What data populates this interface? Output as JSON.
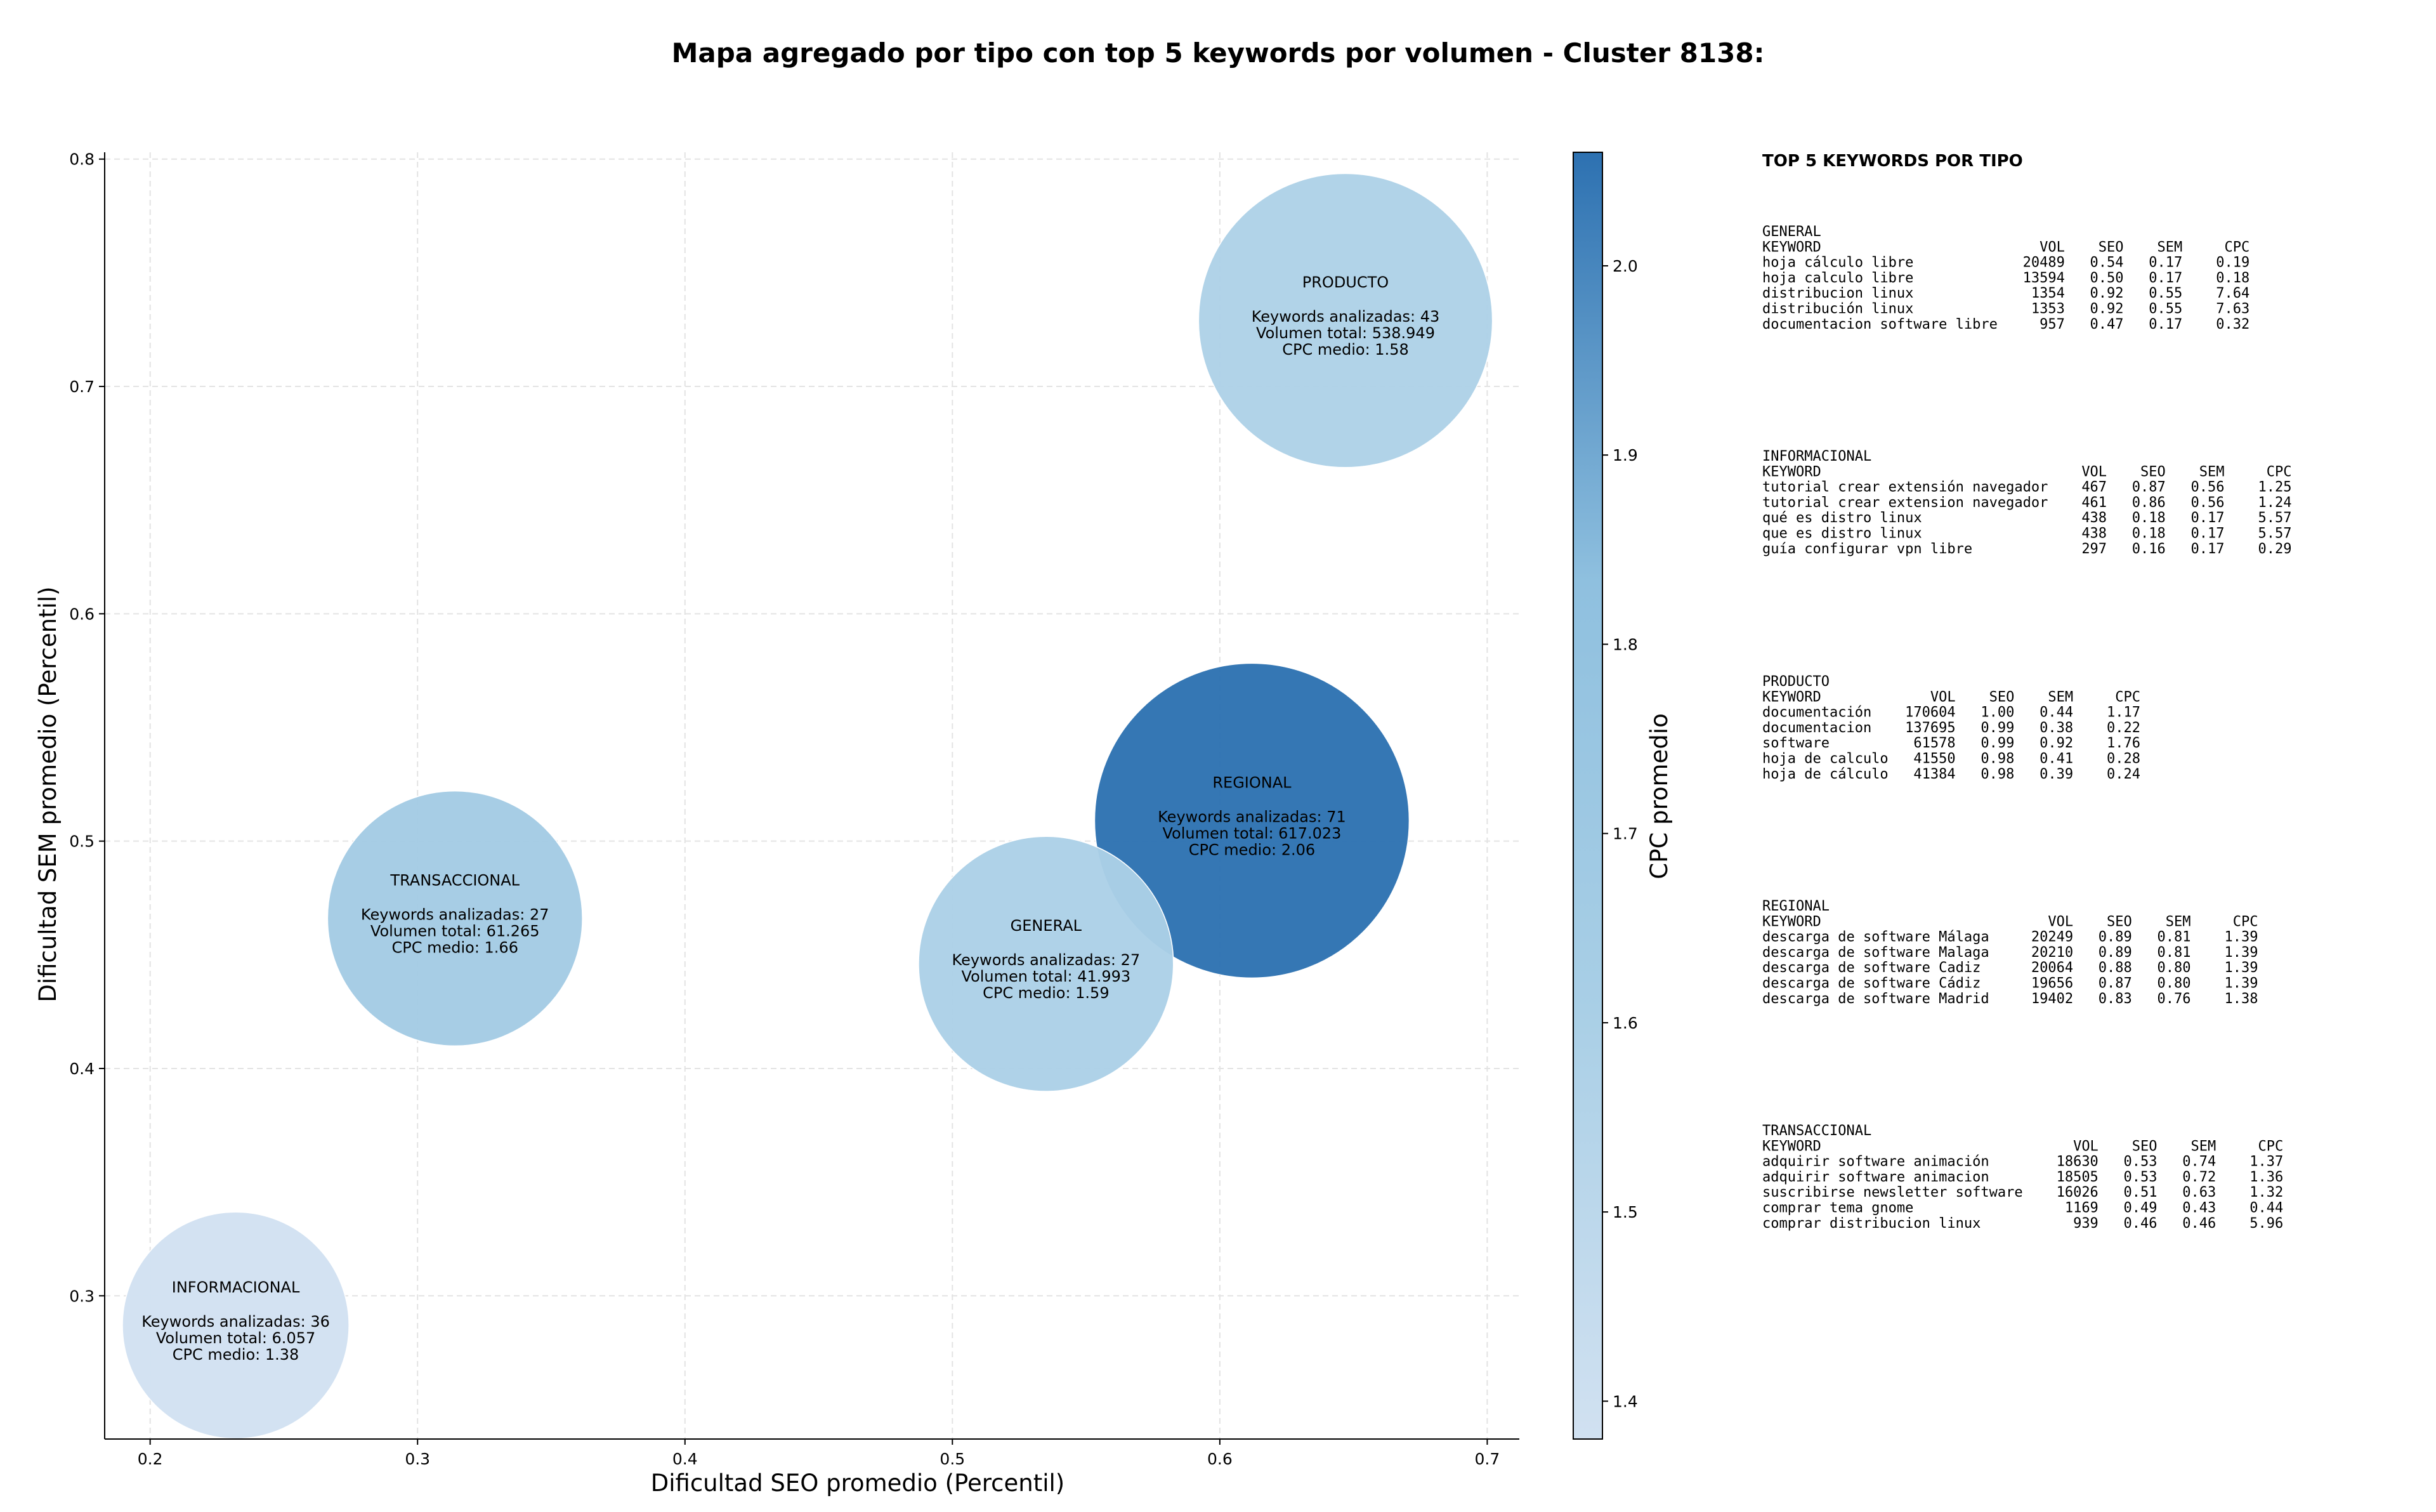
{
  "chart_data": {
    "type": "scatter",
    "title": "Mapa agregado por tipo con top 5 keywords por volumen - Cluster 8138:",
    "xlabel": "Dificultad SEO promedio (Percentil)",
    "ylabel": "Dificultad SEM promedio (Percentil)",
    "xlim": [
      0.183,
      0.712
    ],
    "ylim": [
      0.237,
      0.803
    ],
    "xticks": [
      0.2,
      0.3,
      0.4,
      0.5,
      0.6,
      0.7
    ],
    "yticks": [
      0.3,
      0.4,
      0.5,
      0.6,
      0.7,
      0.8
    ],
    "grid": true,
    "size_encodes": "Volumen total",
    "colorbar": {
      "label": "CPC promedio",
      "min": 1.38,
      "max": 2.06,
      "ticks": [
        1.4,
        1.5,
        1.6,
        1.7,
        1.8,
        1.9,
        2.0
      ],
      "colors": [
        "#d1e1f1",
        "#a9cfe6",
        "#8fc0df",
        "#2d71b1"
      ]
    },
    "points": [
      {
        "name": "PRODUCTO",
        "x": 0.647,
        "y": 0.729,
        "cpc": 1.58,
        "keywords": 43,
        "volume": 538949,
        "radius_rel": 0.934,
        "lines": [
          "Keywords analizadas: 43",
          "Volumen total: 538.949",
          "CPC medio: 1.58"
        ]
      },
      {
        "name": "REGIONAL",
        "x": 0.612,
        "y": 0.509,
        "cpc": 2.06,
        "keywords": 71,
        "volume": 617023,
        "radius_rel": 1.0,
        "lines": [
          "Keywords analizadas: 71",
          "Volumen total: 617.023",
          "CPC medio: 2.06"
        ]
      },
      {
        "name": "GENERAL",
        "x": 0.535,
        "y": 0.446,
        "cpc": 1.59,
        "keywords": 27,
        "volume": 41993,
        "radius_rel": 0.81,
        "lines": [
          "Keywords analizadas: 27",
          "Volumen total: 41.993",
          "CPC medio: 1.59"
        ]
      },
      {
        "name": "TRANSACCIONAL",
        "x": 0.314,
        "y": 0.466,
        "cpc": 1.66,
        "keywords": 27,
        "volume": 61265,
        "radius_rel": 0.81,
        "lines": [
          "Keywords analizadas: 27",
          "Volumen total: 61.265",
          "CPC medio: 1.66"
        ]
      },
      {
        "name": "INFORMACIONAL",
        "x": 0.232,
        "y": 0.287,
        "cpc": 1.38,
        "keywords": 36,
        "volume": 6057,
        "radius_rel": 0.72,
        "lines": [
          "Keywords analizadas: 36",
          "Volumen total: 6.057",
          "CPC medio: 1.38"
        ]
      }
    ]
  },
  "side_panel": {
    "heading": "TOP 5 KEYWORDS POR TIPO",
    "blocks": [
      {
        "lines": [
          "GENERAL",
          "KEYWORD                          VOL    SEO    SEM     CPC",
          "hoja cálculo libre             20489   0.54   0.17    0.19",
          "hoja calculo libre             13594   0.50   0.17    0.18",
          "distribucion linux              1354   0.92   0.55    7.64",
          "distribución linux              1353   0.92   0.55    7.63",
          "documentacion software libre     957   0.47   0.17    0.32"
        ]
      },
      {
        "lines": [
          "INFORMACIONAL",
          "KEYWORD                               VOL    SEO    SEM     CPC",
          "tutorial crear extensión navegador    467   0.87   0.56    1.25",
          "tutorial crear extension navegador    461   0.86   0.56    1.24",
          "qué es distro linux                   438   0.18   0.17    5.57",
          "que es distro linux                   438   0.18   0.17    5.57",
          "guía configurar vpn libre             297   0.16   0.17    0.29"
        ]
      },
      {
        "lines": [
          "PRODUCTO",
          "KEYWORD             VOL    SEO    SEM     CPC",
          "documentación    170604   1.00   0.44    1.17",
          "documentacion    137695   0.99   0.38    0.22",
          "software          61578   0.99   0.92    1.76",
          "hoja de calculo   41550   0.98   0.41    0.28",
          "hoja de cálculo   41384   0.98   0.39    0.24"
        ]
      },
      {
        "lines": [
          "REGIONAL",
          "KEYWORD                           VOL    SEO    SEM     CPC",
          "descarga de software Málaga     20249   0.89   0.81    1.39",
          "descarga de software Malaga     20210   0.89   0.81    1.39",
          "descarga de software Cadiz      20064   0.88   0.80    1.39",
          "descarga de software Cádiz      19656   0.87   0.80    1.39",
          "descarga de software Madrid     19402   0.83   0.76    1.38"
        ]
      },
      {
        "lines": [
          "TRANSACCIONAL",
          "KEYWORD                              VOL    SEO    SEM     CPC",
          "adquirir software animación        18630   0.53   0.74    1.37",
          "adquirir software animacion        18505   0.53   0.72    1.36",
          "suscribirse newsletter software    16026   0.51   0.63    1.32",
          "comprar tema gnome                  1169   0.49   0.43    0.44",
          "comprar distribucion linux           939   0.46   0.46    5.96"
        ]
      }
    ]
  }
}
